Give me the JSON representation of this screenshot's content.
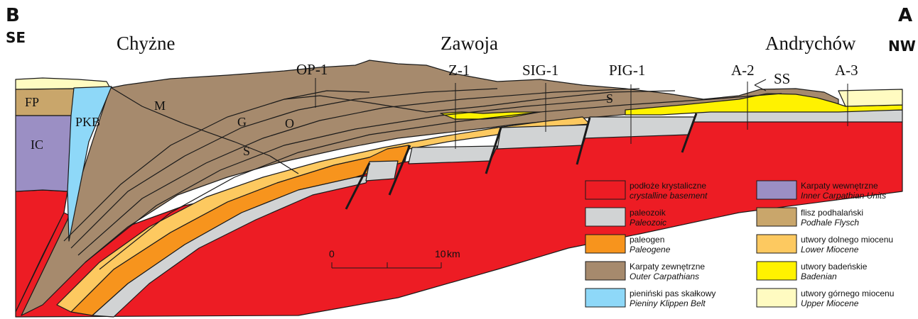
{
  "corners": {
    "left": {
      "letter": "B",
      "direction": "SE"
    },
    "right": {
      "letter": "A",
      "direction": "NW"
    }
  },
  "places": [
    "Chyżne",
    "Zawoja",
    "Andrychów"
  ],
  "wells": [
    "OP-1",
    "Z-1",
    "SIG-1",
    "PIG-1",
    "A-2",
    "A-3",
    "SS"
  ],
  "unit_labels": {
    "fp": "FP",
    "ic": "IC",
    "pkb": "PKB",
    "m": "M",
    "g": "G",
    "o": "O",
    "s1": "S",
    "s2": "S"
  },
  "scale": {
    "start": "0",
    "end": "10",
    "unit": "km"
  },
  "legend": [
    {
      "pl": "podłoże krystaliczne",
      "en": "crystalline basement",
      "color": "#ed1c24"
    },
    {
      "pl": "paleozoik",
      "en": "Paleozoic",
      "color": "#d1d3d4"
    },
    {
      "pl": "paleogen",
      "en": "Paleogene",
      "color": "#f7941d"
    },
    {
      "pl": "Karpaty zewnętrzne",
      "en": "Outer Carpathians",
      "color": "#a68a6d"
    },
    {
      "pl": "pieniński pas skałkowy",
      "en": "Pieniny Klippen Belt",
      "color": "#8ed8f8"
    },
    {
      "pl": "Karpaty wewnętrzne",
      "en": "Inner Carpathian Units",
      "color": "#9b8fc4"
    },
    {
      "pl": "flisz podhalański",
      "en": "Podhale Flysch",
      "color": "#c9a66b"
    },
    {
      "pl": "utwory dolnego miocenu",
      "en": "Lower Miocene",
      "color": "#fdc960"
    },
    {
      "pl": "utwory badeńskie",
      "en": "Badenian",
      "color": "#fff200"
    },
    {
      "pl": "utwory górnego miocenu",
      "en": "Upper Miocene",
      "color": "#fffbc1"
    }
  ]
}
